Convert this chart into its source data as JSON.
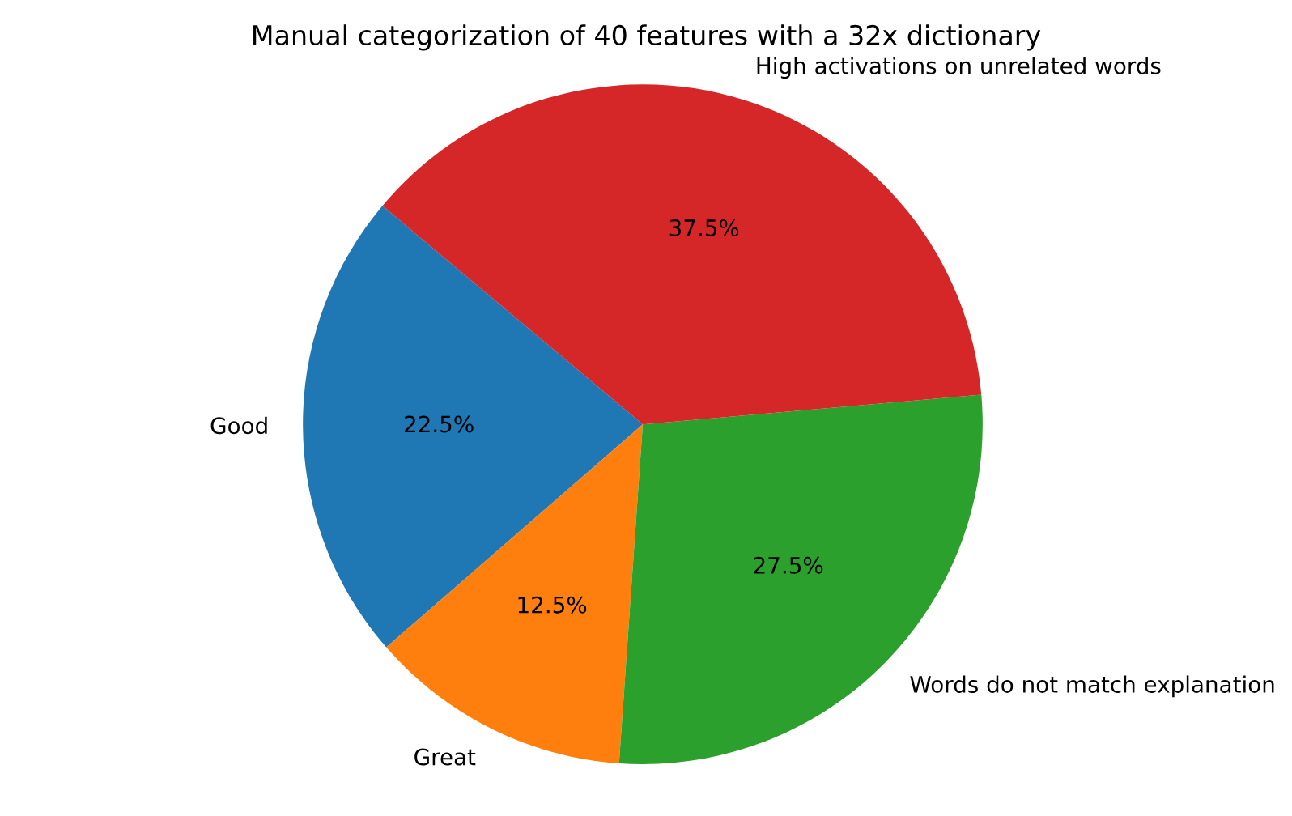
{
  "chart_data": {
    "type": "pie",
    "title": "Manual categorization of 40 features with a 32x dictionary",
    "categories": [
      "Good",
      "Great",
      "Words do not match explanation",
      "High activations on unrelated words"
    ],
    "values": [
      22.5,
      12.5,
      27.5,
      37.5
    ],
    "colors": [
      "#1f77b4",
      "#ff7f0e",
      "#2ca02c",
      "#d62728"
    ],
    "value_labels": [
      "22.5%",
      "12.5%",
      "27.5%",
      "37.5%"
    ]
  }
}
